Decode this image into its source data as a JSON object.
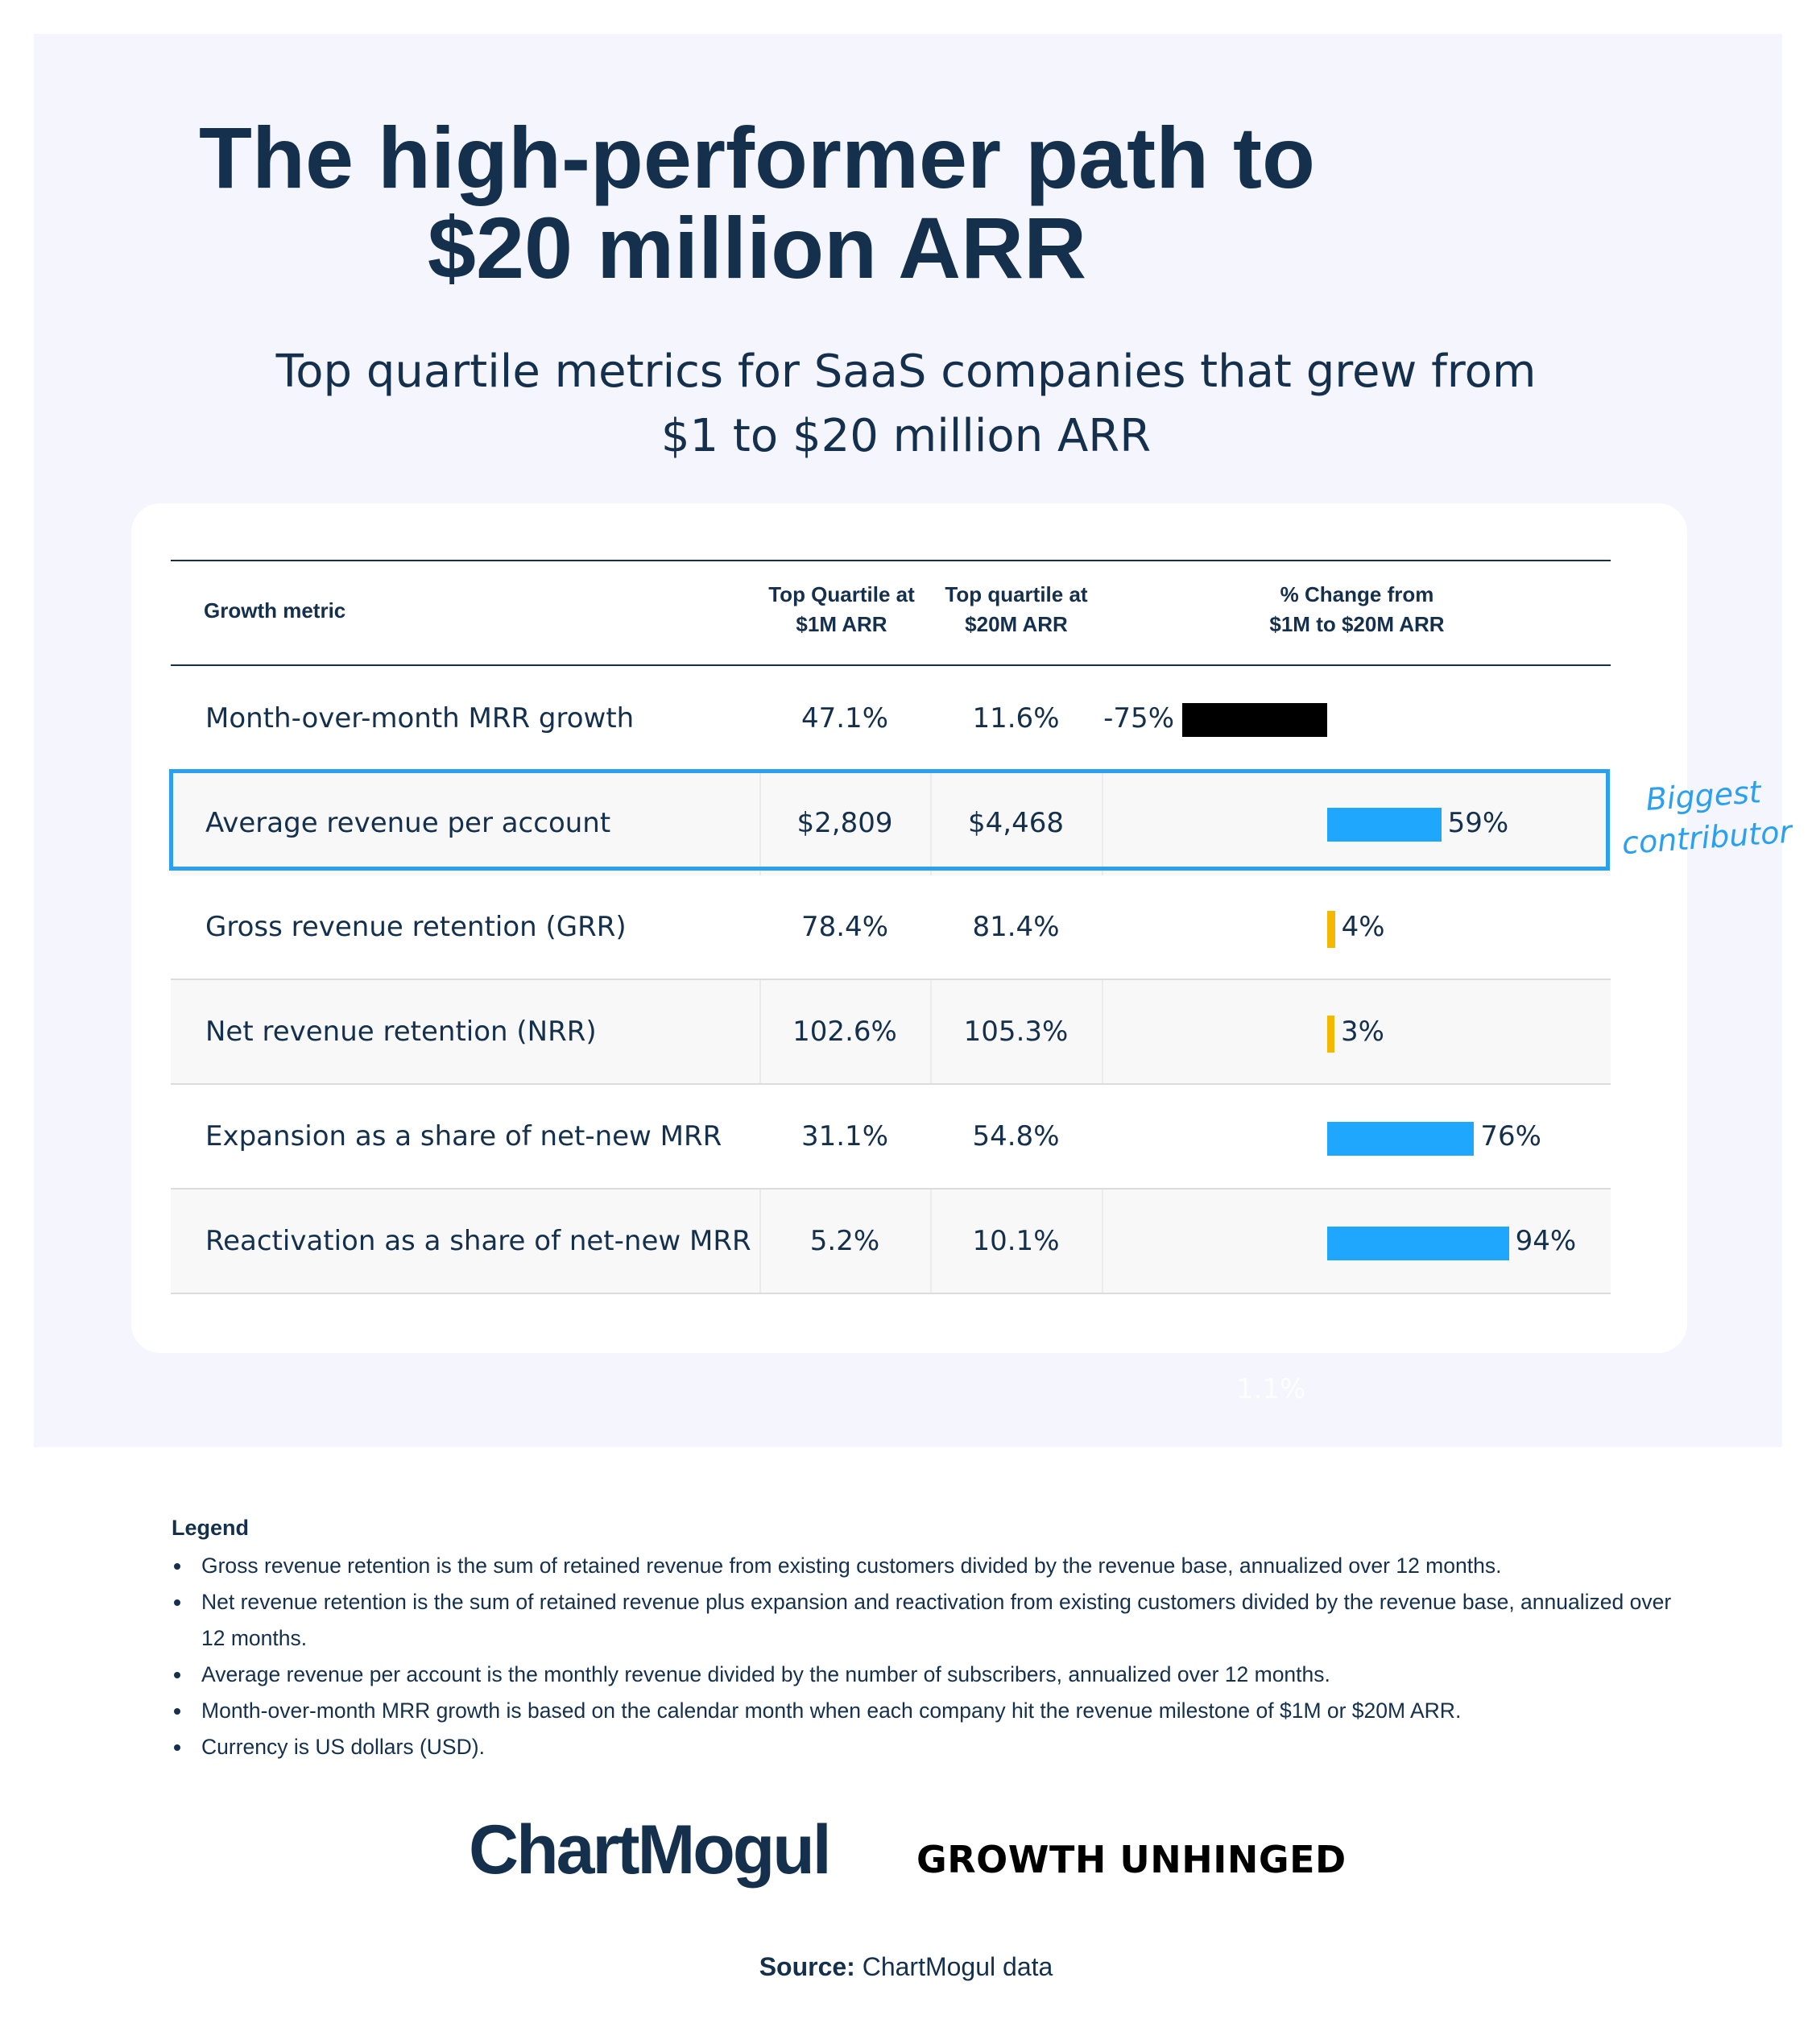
{
  "title_line1": "The high-performer path to",
  "title_line2": "$20 million ARR",
  "subtitle_line1": "Top quartile metrics for SaaS companies that grew from",
  "subtitle_line2": "$1 to $20 million ARR",
  "headers": {
    "metric": "Growth metric",
    "col1_line1": "Top Quartile at",
    "col1_line2": "$1M ARR",
    "col2_line1": "Top quartile at",
    "col2_line2": "$20M ARR",
    "col3_line1": "% Change from",
    "col3_line2": "$1M to $20M ARR"
  },
  "annotation_line1": "Biggest",
  "annotation_line2": "contributor",
  "ghost_label": "1.1%",
  "colors": {
    "navy": "#14304d",
    "blue_bar": "#1ea7fd",
    "yellow_bar": "#f5b800",
    "black_bar": "#000000",
    "highlight": "#2aa0ef"
  },
  "chart_data": {
    "type": "table",
    "columns": [
      "Growth metric",
      "Top Quartile at $1M ARR",
      "Top quartile at $20M ARR",
      "% Change from $1M to $20M ARR"
    ],
    "rows": [
      {
        "metric": "Month-over-month MRR growth",
        "at_1m": "47.1%",
        "at_20m": "11.6%",
        "change_label": "-75%",
        "change": -75,
        "bar_color": "#000000",
        "highlighted": false
      },
      {
        "metric": "Average revenue per account",
        "at_1m": "$2,809",
        "at_20m": "$4,468",
        "change_label": "59%",
        "change": 59,
        "bar_color": "#1ea7fd",
        "highlighted": true
      },
      {
        "metric": "Gross revenue retention (GRR)",
        "at_1m": "78.4%",
        "at_20m": "81.4%",
        "change_label": "4%",
        "change": 4,
        "bar_color": "#f5b800",
        "highlighted": false
      },
      {
        "metric": "Net revenue retention (NRR)",
        "at_1m": "102.6%",
        "at_20m": "105.3%",
        "change_label": "3%",
        "change": 3,
        "bar_color": "#f5b800",
        "highlighted": false
      },
      {
        "metric": "Expansion as a share of net-new MRR",
        "at_1m": "31.1%",
        "at_20m": "54.8%",
        "change_label": "76%",
        "change": 76,
        "bar_color": "#1ea7fd",
        "highlighted": false
      },
      {
        "metric": "Reactivation as a share of net-new MRR",
        "at_1m": "5.2%",
        "at_20m": "10.1%",
        "change_label": "94%",
        "change": 94,
        "bar_color": "#1ea7fd",
        "highlighted": false
      }
    ]
  },
  "legend": {
    "title": "Legend",
    "items": [
      "Gross revenue retention is the sum of retained revenue from existing customers divided by the revenue base, annualized over 12 months.",
      "Net revenue retention is the sum of retained revenue plus expansion and reactivation from existing customers divided by the revenue base, annualized over 12 months.",
      "Average revenue per account is the monthly revenue divided by the number of subscribers, annualized over 12 months.",
      "Month-over-month MRR growth is based on the calendar month when each company hit the revenue milestone of $1M or $20M ARR.",
      "Currency is US dollars (USD)."
    ]
  },
  "logos": {
    "chartmogul": "ChartMogul",
    "growth_unhinged": "GROWTH UNHINGED"
  },
  "source": {
    "label": "Source:",
    "text": " ChartMogul data"
  }
}
